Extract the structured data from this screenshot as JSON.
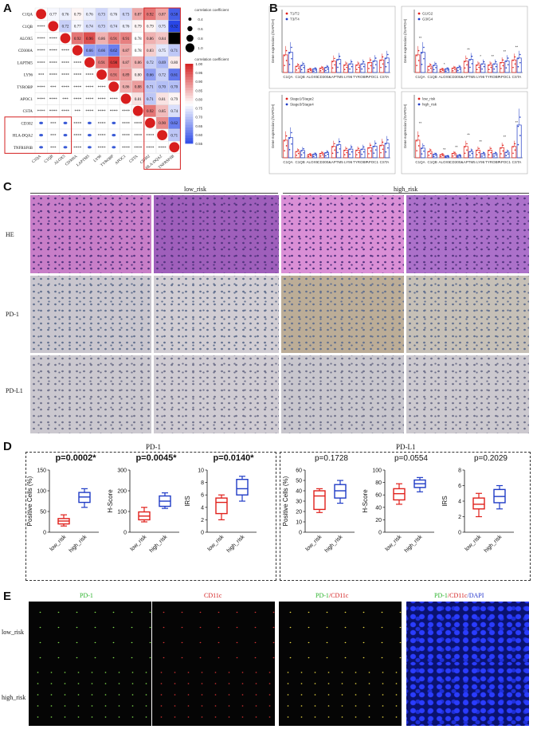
{
  "panels": {
    "A": "A",
    "B": "B",
    "C": "C",
    "D": "D",
    "E": "E"
  },
  "panelA": {
    "genes": [
      "C1QA",
      "C1QB",
      "ALOX5",
      "CD300A",
      "LAPTM5",
      "LY96",
      "TYROBP",
      "APOC1",
      "CSTA",
      "CD302",
      "HLA-DQA2",
      "TNFRSF6B"
    ],
    "upper_values": [
      [
        "0.77",
        "0.76",
        "0.79",
        "0.76",
        "0.73",
        "0.76",
        "0.73",
        "0.87",
        "0.92",
        "0.87",
        "0.58"
      ],
      [
        "0.72",
        "0.77",
        "0.74",
        "0.73",
        "0.74",
        "0.76",
        "0.79",
        "0.79",
        "0.75",
        "0.32"
      ],
      [
        "0.92",
        "0.96",
        "0.86",
        "0.91",
        "0.91",
        "0.78",
        "0.86",
        "0.84"
      ],
      [
        "0.66",
        "0.66",
        "0.62",
        "0.87",
        "0.78",
        "0.83",
        "0.75",
        "0.71"
      ],
      [
        "0.91",
        "0.98",
        "0.87",
        "0.86",
        "0.72",
        "0.69",
        "0.80"
      ],
      [
        "0.91",
        "0.89",
        "0.80",
        "0.66",
        "0.72",
        "0.61"
      ],
      [
        "0.86",
        "0.88",
        "0.71",
        "0.70",
        "0.70"
      ],
      [
        "0.81",
        "0.71",
        "0.81",
        "0.79"
      ],
      [
        "0.92",
        "0.85",
        "0.74"
      ],
      [
        "0.90",
        "0.62"
      ],
      [
        "0.71"
      ]
    ],
    "legend_size_title": "correlation coefficient",
    "legend_size_ticks": [
      "0.4",
      "0.6",
      "0.8",
      "1.0"
    ],
    "legend_color_title": "correlation coefficient",
    "legend_color_ticks": [
      "1.00",
      "0.95",
      "0.90",
      "0.85",
      "0.80",
      "0.75",
      "0.70",
      "0.65",
      "0.60",
      "0.55"
    ]
  },
  "panelB": {
    "ylabel": "Gene expression (/GAPDH)",
    "genes": [
      "C1QA",
      "C1QB",
      "ALOX5",
      "CD300A",
      "LAPTM5",
      "LY96",
      "TYROBP",
      "APOC1",
      "CSTA"
    ],
    "subplots": [
      {
        "legend": [
          "T1/T2",
          "T3/T4"
        ],
        "stars": []
      },
      {
        "legend": [
          "G1/G2",
          "G3/G4"
        ],
        "stars": [
          "**",
          "*",
          "**",
          "*",
          "**",
          "**",
          "**"
        ]
      },
      {
        "legend": [
          "Stage1/Stage2",
          "Stage3/Stage4"
        ],
        "stars": []
      },
      {
        "legend": [
          "low_risk",
          "high_risk"
        ],
        "stars": [
          "**",
          "**",
          "**",
          "**",
          "**",
          "**",
          "**"
        ]
      }
    ]
  },
  "panelC": {
    "group_low": "low_risk",
    "group_high": "high_risk",
    "rows": [
      "HE",
      "PD-1",
      "PD-L1"
    ]
  },
  "panelD": {
    "group1_title": "PD-1",
    "group2_title": "PD-L1",
    "charts": [
      {
        "ylabel": "Positive Cells (%)",
        "p": "p=0.0002*",
        "bold": true,
        "ymax": 150,
        "yticks": [
          "0",
          "50",
          "100",
          "150"
        ],
        "categories": [
          "low_risk",
          "high_risk"
        ],
        "boxes": [
          {
            "min": 15,
            "q1": 20,
            "med": 27,
            "q3": 33,
            "max": 42
          },
          {
            "min": 60,
            "q1": 72,
            "med": 85,
            "q3": 96,
            "max": 105
          }
        ]
      },
      {
        "ylabel": "H-Score",
        "p": "p=0.0045*",
        "bold": true,
        "ymax": 300,
        "yticks": [
          "0",
          "100",
          "200",
          "300"
        ],
        "categories": [
          "low_risk",
          "high_risk"
        ],
        "boxes": [
          {
            "min": 50,
            "q1": 60,
            "med": 78,
            "q3": 98,
            "max": 120
          },
          {
            "min": 115,
            "q1": 125,
            "med": 150,
            "q3": 175,
            "max": 190
          }
        ]
      },
      {
        "ylabel": "IRS",
        "p": "p=0.0140*",
        "bold": true,
        "ymax": 10,
        "yticks": [
          "0",
          "2",
          "4",
          "6",
          "8",
          "10"
        ],
        "categories": [
          "low_risk",
          "high_risk"
        ],
        "boxes": [
          {
            "min": 2,
            "q1": 3,
            "med": 4.8,
            "q3": 5.5,
            "max": 6
          },
          {
            "min": 5,
            "q1": 6,
            "med": 7,
            "q3": 8.5,
            "max": 9
          }
        ]
      },
      {
        "ylabel": "Positive Cells (%)",
        "p": "p=0.1728",
        "bold": false,
        "ymax": 60,
        "yticks": [
          "0",
          "10",
          "20",
          "30",
          "40",
          "50",
          "60"
        ],
        "categories": [
          "low_risk",
          "high_risk"
        ],
        "boxes": [
          {
            "min": 19,
            "q1": 22,
            "med": 35,
            "q3": 40,
            "max": 42
          },
          {
            "min": 28,
            "q1": 33,
            "med": 40,
            "q3": 46,
            "max": 50
          }
        ]
      },
      {
        "ylabel": "H-Score",
        "p": "p=0.0554",
        "bold": false,
        "ymax": 100,
        "yticks": [
          "0",
          "20",
          "40",
          "60",
          "80",
          "100"
        ],
        "categories": [
          "low_risk",
          "high_risk"
        ],
        "boxes": [
          {
            "min": 45,
            "q1": 52,
            "med": 62,
            "q3": 70,
            "max": 78
          },
          {
            "min": 65,
            "q1": 72,
            "med": 78,
            "q3": 84,
            "max": 88
          }
        ]
      },
      {
        "ylabel": "IRS",
        "p": "p=0.2029",
        "bold": false,
        "ymax": 8,
        "yticks": [
          "0",
          "2",
          "4",
          "6",
          "8"
        ],
        "categories": [
          "low_risk",
          "high_risk"
        ],
        "boxes": [
          {
            "min": 2,
            "q1": 3,
            "med": 3.6,
            "q3": 4.4,
            "max": 5
          },
          {
            "min": 3,
            "q1": 3.8,
            "med": 4.6,
            "q3": 5.5,
            "max": 6
          }
        ]
      }
    ],
    "colors": {
      "low": "#e0201b",
      "high": "#1f3bc6"
    }
  },
  "panelE": {
    "col1": "PD-1",
    "col2": "CD11c",
    "col3_a": "PD-1",
    "col3_b": "/CD11c",
    "col4_a": "PD-1",
    "col4_b": "/CD11c",
    "col4_c": "/DAPI",
    "row1": "low_risk",
    "row2": "high_risk"
  }
}
